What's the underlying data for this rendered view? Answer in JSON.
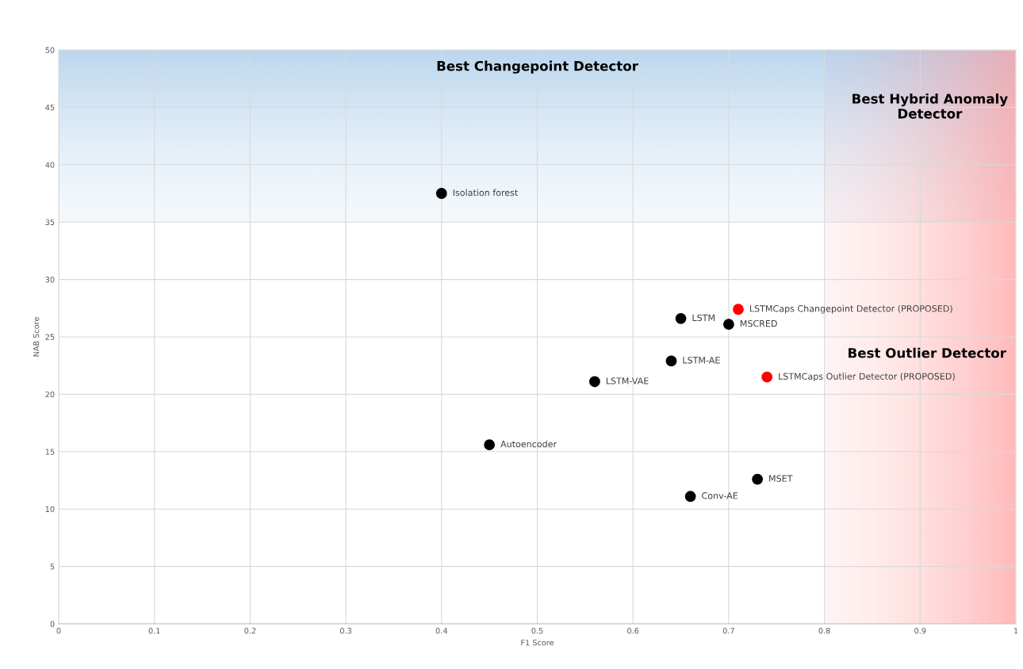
{
  "chart_data": {
    "type": "scatter",
    "xlabel": "F1 Score",
    "ylabel": "NAB Score",
    "xlim": [
      0,
      1
    ],
    "xticks": [
      0,
      0.1,
      0.2,
      0.3,
      0.4,
      0.5,
      0.6,
      0.7,
      0.8,
      0.9,
      1
    ],
    "ylim": [
      0,
      50
    ],
    "yticks": [
      0,
      5,
      10,
      15,
      20,
      25,
      30,
      35,
      40,
      45,
      50
    ],
    "grid": true,
    "marker": "circle",
    "series": [
      {
        "name": "Isolation forest",
        "color": "#000000",
        "x": [
          0.4
        ],
        "values": [
          37.5
        ]
      },
      {
        "name": "Autoencoder",
        "color": "#000000",
        "x": [
          0.45
        ],
        "values": [
          15.6
        ]
      },
      {
        "name": "LSTM-VAE",
        "color": "#000000",
        "x": [
          0.56
        ],
        "values": [
          21.1
        ]
      },
      {
        "name": "LSTM-AE",
        "color": "#000000",
        "x": [
          0.64
        ],
        "values": [
          22.9
        ]
      },
      {
        "name": "LSTM",
        "color": "#000000",
        "x": [
          0.65
        ],
        "values": [
          26.6
        ]
      },
      {
        "name": "MSCRED",
        "color": "#000000",
        "x": [
          0.7
        ],
        "values": [
          26.1
        ]
      },
      {
        "name": "Conv-AE",
        "color": "#000000",
        "x": [
          0.66
        ],
        "values": [
          11.1
        ]
      },
      {
        "name": "MSET",
        "color": "#000000",
        "x": [
          0.73
        ],
        "values": [
          12.6
        ]
      },
      {
        "name": "LSTMCaps Changepoint Detector (PROPOSED)",
        "color": "#ff0000",
        "x": [
          0.71
        ],
        "values": [
          27.4
        ]
      },
      {
        "name": "LSTMCaps Outlier Detector (PROPOSED)",
        "color": "#ff0000",
        "x": [
          0.74
        ],
        "values": [
          21.5
        ]
      }
    ],
    "bands": [
      {
        "axis": "y",
        "from": 35,
        "to": 50,
        "label": "Best Changepoint Detector",
        "color": "#9dc3e6"
      },
      {
        "axis": "x",
        "from": 0.8,
        "to": 1,
        "label": "Best Outlier Detector",
        "color": "#ff9a9a"
      }
    ],
    "annotations": [
      "Best Hybrid Anomaly\nDetector"
    ]
  }
}
